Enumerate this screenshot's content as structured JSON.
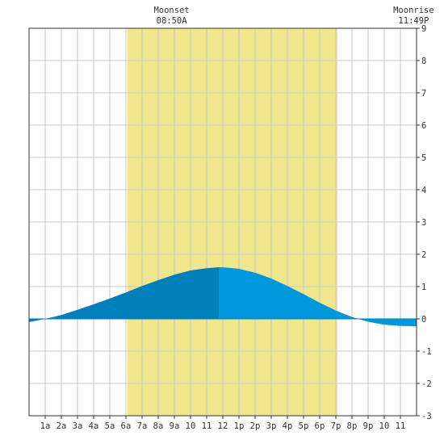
{
  "chart_data": {
    "type": "area",
    "title": "",
    "xlabel": "",
    "ylabel": "",
    "x_tick_labels": [
      "1a",
      "2a",
      "3a",
      "4a",
      "5a",
      "6a",
      "7a",
      "8a",
      "9a",
      "10",
      "11",
      "12",
      "1p",
      "2p",
      "3p",
      "4p",
      "5p",
      "6p",
      "7p",
      "8p",
      "9p",
      "10",
      "11"
    ],
    "xlim_hours": [
      0,
      24
    ],
    "ylim": [
      -3,
      9
    ],
    "y_ticks": [
      -3,
      -2,
      -1,
      0,
      1,
      2,
      3,
      4,
      5,
      6,
      7,
      8,
      9
    ],
    "grid": true,
    "daylight_hours": [
      6.1,
      19.1
    ],
    "annotations": [
      {
        "label": "Moonset",
        "time": "08:50A",
        "hour": 8.83
      },
      {
        "label": "Moonrise",
        "time": "11:49P",
        "hour": 23.82
      }
    ],
    "series": [
      {
        "x": [
          0,
          1,
          2,
          3,
          4,
          5,
          6,
          7,
          8,
          9,
          10,
          11,
          11.75,
          12,
          13,
          14,
          15,
          16,
          17,
          18,
          19,
          20,
          21,
          22,
          23,
          24
        ],
        "values": [
          -0.1,
          0.0,
          0.12,
          0.28,
          0.45,
          0.63,
          0.82,
          1.02,
          1.2,
          1.37,
          1.5,
          1.57,
          1.6,
          1.6,
          1.55,
          1.43,
          1.25,
          1.02,
          0.77,
          0.5,
          0.26,
          0.06,
          -0.09,
          -0.18,
          -0.22,
          -0.23
        ]
      }
    ],
    "colors": {
      "daylight": "#f0e68c",
      "tide_night": "#0080bb",
      "tide_day": "#0099dd",
      "grid": "#c8c8c8",
      "axis": "#333333"
    }
  }
}
